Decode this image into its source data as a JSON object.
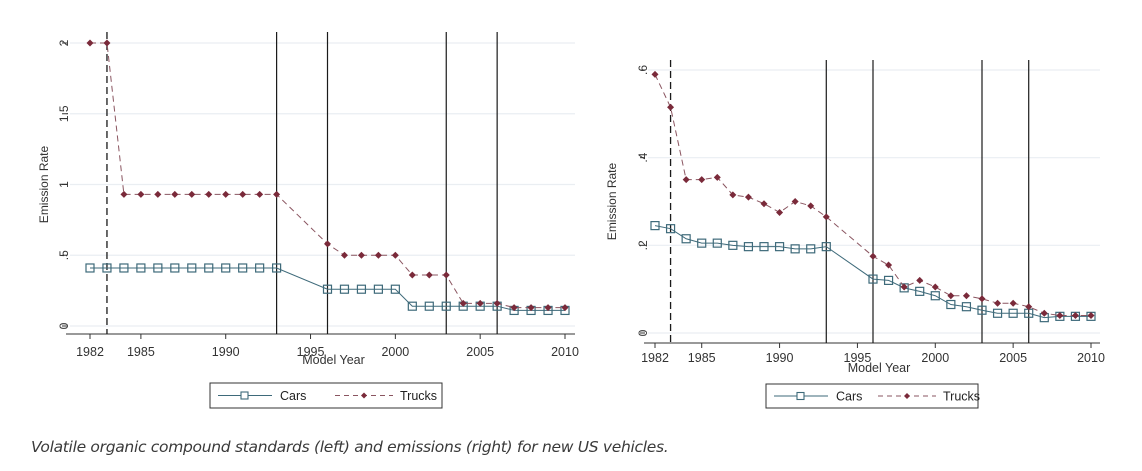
{
  "caption": "Volatile organic compound standards (left) and emissions (right) for new US vehicles.",
  "colors": {
    "cars": "#3e6a7a",
    "trucks": "#7a2a3a",
    "grid": "#eaeef2",
    "vline": "#1a1a1a"
  },
  "chart_data": [
    {
      "type": "line",
      "title": "",
      "xlabel": "Model Year",
      "ylabel": "Emission Rate",
      "xlim": [
        1982,
        2010
      ],
      "ylim": [
        0,
        2
      ],
      "x_ticks": [
        1982,
        1985,
        1990,
        1995,
        2000,
        2005,
        2010
      ],
      "x_tick_labels": [
        "1982",
        "1985",
        "1990",
        "1995",
        "2000",
        "2005",
        "2010"
      ],
      "y_ticks": [
        0,
        0.5,
        1,
        1.5,
        2
      ],
      "y_tick_labels": [
        "0",
        ".5",
        "1",
        "1.5",
        "2"
      ],
      "grid": true,
      "legend": "bottom",
      "dashed_vlines": [
        1983
      ],
      "solid_vlines": [
        1993,
        1996,
        2003,
        2006
      ],
      "x": [
        1982,
        1983,
        1984,
        1985,
        1986,
        1987,
        1988,
        1989,
        1990,
        1991,
        1992,
        1993,
        1996,
        1997,
        1998,
        1999,
        2000,
        2001,
        2002,
        2003,
        2004,
        2005,
        2006,
        2007,
        2008,
        2009,
        2010
      ],
      "series": [
        {
          "name": "Cars",
          "style": "solid-square",
          "values": [
            0.41,
            0.41,
            0.41,
            0.41,
            0.41,
            0.41,
            0.41,
            0.41,
            0.41,
            0.41,
            0.41,
            0.41,
            0.26,
            0.26,
            0.26,
            0.26,
            0.26,
            0.14,
            0.14,
            0.14,
            0.14,
            0.14,
            0.14,
            0.11,
            0.11,
            0.11,
            0.11
          ]
        },
        {
          "name": "Trucks",
          "style": "dashed-diamond",
          "values": [
            2.0,
            2.0,
            0.93,
            0.93,
            0.93,
            0.93,
            0.93,
            0.93,
            0.93,
            0.93,
            0.93,
            0.93,
            0.58,
            0.5,
            0.5,
            0.5,
            0.5,
            0.36,
            0.36,
            0.36,
            0.16,
            0.16,
            0.16,
            0.13,
            0.13,
            0.13,
            0.13
          ]
        }
      ]
    },
    {
      "type": "line",
      "title": "",
      "xlabel": "Model Year",
      "ylabel": "Emission Rate",
      "xlim": [
        1982,
        2010
      ],
      "ylim": [
        0,
        0.6
      ],
      "x_ticks": [
        1982,
        1985,
        1990,
        1995,
        2000,
        2005,
        2010
      ],
      "x_tick_labels": [
        "1982",
        "1985",
        "1990",
        "1995",
        "2000",
        "2005",
        "2010"
      ],
      "y_ticks": [
        0,
        0.2,
        0.4,
        0.6
      ],
      "y_tick_labels": [
        "0",
        ".2",
        ".4",
        ".6"
      ],
      "grid": true,
      "legend": "bottom",
      "dashed_vlines": [
        1983
      ],
      "solid_vlines": [
        1993,
        1996,
        2003,
        2006
      ],
      "x": [
        1982,
        1983,
        1984,
        1985,
        1986,
        1987,
        1988,
        1989,
        1990,
        1991,
        1992,
        1993,
        1996,
        1997,
        1998,
        1999,
        2000,
        2001,
        2002,
        2003,
        2004,
        2005,
        2006,
        2007,
        2008,
        2009,
        2010
      ],
      "series": [
        {
          "name": "Cars",
          "style": "solid-square",
          "values": [
            0.245,
            0.238,
            0.215,
            0.205,
            0.205,
            0.2,
            0.197,
            0.197,
            0.197,
            0.192,
            0.192,
            0.197,
            0.123,
            0.12,
            0.103,
            0.095,
            0.085,
            0.065,
            0.06,
            0.052,
            0.045,
            0.045,
            0.045,
            0.035,
            0.038,
            0.038,
            0.038
          ]
        },
        {
          "name": "Trucks",
          "style": "dashed-diamond",
          "values": [
            0.59,
            0.515,
            0.35,
            0.35,
            0.355,
            0.315,
            0.31,
            0.295,
            0.275,
            0.3,
            0.29,
            0.265,
            0.175,
            0.155,
            0.105,
            0.12,
            0.105,
            0.085,
            0.085,
            0.078,
            0.068,
            0.068,
            0.06,
            0.045,
            0.04,
            0.04,
            0.04
          ]
        }
      ]
    }
  ]
}
